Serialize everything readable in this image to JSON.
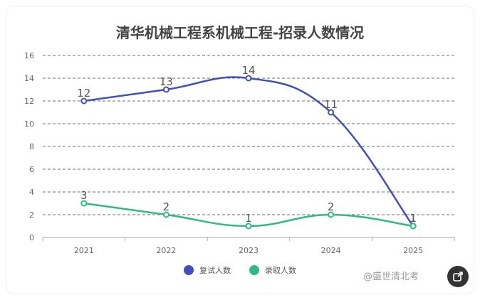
{
  "chart_data": {
    "type": "line",
    "title": "清华机械工程系机械工程-招录人数情况",
    "categories": [
      "2021",
      "2022",
      "2023",
      "2024",
      "2025"
    ],
    "series": [
      {
        "name": "复试人数",
        "values": [
          12,
          13,
          14,
          11,
          1
        ],
        "color": "#4150b8"
      },
      {
        "name": "录取人数",
        "values": [
          3,
          2,
          1,
          2,
          1
        ],
        "color": "#2fba84"
      }
    ],
    "ylim": [
      0,
      16
    ],
    "yticks": [
      "0",
      "2",
      "4",
      "6",
      "8",
      "10",
      "12",
      "14",
      "16"
    ],
    "grid": true,
    "legend_position": "bottom"
  },
  "watermark": "@盛世清北考",
  "share_icon": "share-icon"
}
